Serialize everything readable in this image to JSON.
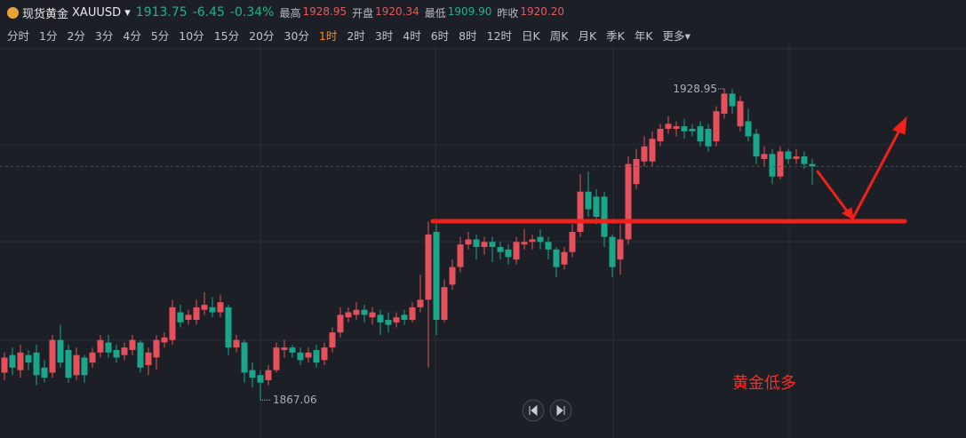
{
  "header": {
    "name": "现货黄金",
    "symbol": "XAUUSD",
    "price": "1913.75",
    "change": "-6.45",
    "change_pct": "-0.34%",
    "stats": [
      {
        "label": "最高",
        "value": "1928.95"
      },
      {
        "label": "开盘",
        "value": "1920.34"
      },
      {
        "label": "最低",
        "value": "1909.90"
      },
      {
        "label": "昨收",
        "value": "1920.20"
      }
    ]
  },
  "toolbar": {
    "items": [
      "分时",
      "1分",
      "2分",
      "3分",
      "4分",
      "5分",
      "10分",
      "15分",
      "20分",
      "30分",
      "1时",
      "2时",
      "3时",
      "4时",
      "6时",
      "8时",
      "12时",
      "日K",
      "周K",
      "月K",
      "季K",
      "年K",
      "更多"
    ],
    "active": 10
  },
  "chart_data": {
    "type": "candlestick",
    "up_color": "#e5505c",
    "down_color": "#1aa68b",
    "ylim": [
      1859.5,
      1936.9
    ],
    "max_label": 1928.95,
    "min_label": 1867.06,
    "note": "黄金低多",
    "open": [
      1872.5,
      1876.0,
      1873.0,
      1876.0,
      1876.5,
      1873.5,
      1872.5,
      1879.0,
      1877.0,
      1872.0,
      1875.5,
      1874.5,
      1876.5,
      1878.5,
      1877.0,
      1876.0,
      1877.0,
      1878.5,
      1874.0,
      1875.5,
      1878.5,
      1879.0,
      1884.5,
      1883.0,
      1883.0,
      1885.0,
      1885.5,
      1884.5,
      1885.5,
      1877.5,
      1878.5,
      1873.0,
      1872.0,
      1871.0,
      1873.0,
      1877.0,
      1877.5,
      1876.5,
      1875.5,
      1877.0,
      1875.0,
      1877.5,
      1880.5,
      1883.5,
      1884.0,
      1885.0,
      1883.5,
      1884.0,
      1883.0,
      1882.5,
      1884.0,
      1883.0,
      1885.5,
      1887.0,
      1900.5,
      1883.0,
      1890.0,
      1893.5,
      1898.0,
      1899.0,
      1897.5,
      1898.5,
      1897.5,
      1897.0,
      1895.0,
      1898.0,
      1898.5,
      1899.5,
      1898.5,
      1897.0,
      1894.0,
      1896.5,
      1900.5,
      1908.5,
      1907.5,
      1907.5,
      1899.5,
      1895.0,
      1899.0,
      1910.0,
      1914.5,
      1914.5,
      1918.5,
      1921.0,
      1921.0,
      1921.5,
      1921.0,
      1921.5,
      1921.0,
      1918.5,
      1924.0,
      1928.0,
      1921.5,
      1922.5,
      1920.0,
      1915.0,
      1916.0,
      1911.5,
      1916.5,
      1915.0,
      1915.5,
      1914.0
    ],
    "high": [
      1876.5,
      1877.5,
      1878.0,
      1877.0,
      1878.0,
      1875.0,
      1880.0,
      1882.0,
      1878.0,
      1877.5,
      1876.0,
      1877.5,
      1880.0,
      1880.0,
      1878.0,
      1878.5,
      1880.0,
      1879.0,
      1877.5,
      1880.0,
      1880.5,
      1887.0,
      1886.0,
      1885.0,
      1887.0,
      1888.5,
      1887.5,
      1888.0,
      1886.0,
      1880.0,
      1879.0,
      1874.5,
      1873.0,
      1874.0,
      1878.5,
      1879.0,
      1878.0,
      1877.5,
      1877.5,
      1878.0,
      1878.5,
      1881.5,
      1885.5,
      1885.5,
      1886.5,
      1886.0,
      1885.5,
      1885.0,
      1884.5,
      1884.5,
      1885.0,
      1886.5,
      1892.0,
      1902.5,
      1902.0,
      1891.0,
      1895.0,
      1899.5,
      1900.5,
      1900.0,
      1899.5,
      1899.5,
      1898.5,
      1898.0,
      1899.5,
      1901.0,
      1900.0,
      1901.0,
      1899.5,
      1897.5,
      1897.5,
      1902.0,
      1912.0,
      1912.5,
      1909.0,
      1908.5,
      1900.0,
      1902.0,
      1915.5,
      1917.0,
      1919.5,
      1920.5,
      1922.0,
      1923.5,
      1922.5,
      1923.0,
      1922.0,
      1922.5,
      1922.0,
      1925.5,
      1928.95,
      1928.9,
      1927.5,
      1925.0,
      1921.0,
      1917.5,
      1917.0,
      1917.5,
      1917.0,
      1917.0,
      1916.5,
      1915.0
    ],
    "low": [
      1871.0,
      1872.0,
      1871.5,
      1873.0,
      1870.0,
      1870.5,
      1871.5,
      1873.5,
      1870.5,
      1871.0,
      1870.5,
      1873.5,
      1875.5,
      1875.5,
      1874.5,
      1875.0,
      1876.0,
      1872.5,
      1872.0,
      1873.0,
      1877.5,
      1878.0,
      1881.5,
      1882.0,
      1882.0,
      1884.0,
      1883.5,
      1883.5,
      1876.0,
      1876.5,
      1870.5,
      1869.5,
      1867.06,
      1870.0,
      1872.5,
      1875.5,
      1875.5,
      1874.0,
      1874.5,
      1873.5,
      1874.0,
      1876.5,
      1879.5,
      1882.5,
      1883.0,
      1882.5,
      1882.0,
      1880.0,
      1880.5,
      1881.5,
      1882.0,
      1882.5,
      1884.5,
      1873.5,
      1880.0,
      1882.5,
      1889.0,
      1892.5,
      1897.0,
      1895.0,
      1896.0,
      1894.5,
      1895.0,
      1894.0,
      1894.0,
      1897.0,
      1897.0,
      1897.0,
      1895.0,
      1891.5,
      1893.0,
      1895.5,
      1899.5,
      1903.5,
      1902.0,
      1897.5,
      1891.5,
      1892.0,
      1898.0,
      1909.0,
      1913.5,
      1913.5,
      1917.5,
      1920.0,
      1919.5,
      1919.0,
      1919.5,
      1917.5,
      1916.5,
      1917.5,
      1923.0,
      1924.0,
      1920.5,
      1918.5,
      1914.0,
      1913.5,
      1910.0,
      1911.0,
      1914.0,
      1914.0,
      1913.0,
      1909.9
    ],
    "close": [
      1875.5,
      1873.5,
      1876.5,
      1874.5,
      1872.0,
      1871.5,
      1879.0,
      1874.5,
      1871.5,
      1876.0,
      1872.0,
      1876.5,
      1879.0,
      1876.5,
      1875.5,
      1877.5,
      1879.0,
      1873.5,
      1876.5,
      1879.0,
      1879.5,
      1885.5,
      1882.5,
      1884.0,
      1885.5,
      1886.0,
      1884.5,
      1886.5,
      1877.5,
      1879.0,
      1872.5,
      1871.5,
      1870.5,
      1873.0,
      1877.5,
      1877.5,
      1876.5,
      1875.0,
      1876.5,
      1874.5,
      1877.5,
      1880.5,
      1884.0,
      1884.5,
      1885.0,
      1884.0,
      1884.5,
      1882.5,
      1882.0,
      1883.5,
      1883.0,
      1885.5,
      1887.0,
      1900.0,
      1883.0,
      1889.5,
      1893.5,
      1898.0,
      1899.0,
      1897.5,
      1898.5,
      1897.5,
      1896.5,
      1895.5,
      1898.5,
      1898.5,
      1899.0,
      1898.5,
      1897.0,
      1893.5,
      1896.5,
      1900.5,
      1908.5,
      1905.0,
      1903.5,
      1899.5,
      1893.5,
      1899.0,
      1914.0,
      1915.0,
      1917.5,
      1919.0,
      1921.0,
      1922.0,
      1921.5,
      1920.5,
      1920.5,
      1918.5,
      1917.5,
      1924.5,
      1928.0,
      1925.5,
      1926.5,
      1919.5,
      1915.5,
      1916.0,
      1911.5,
      1916.5,
      1915.0,
      1915.5,
      1914.0,
      1913.5
    ]
  }
}
